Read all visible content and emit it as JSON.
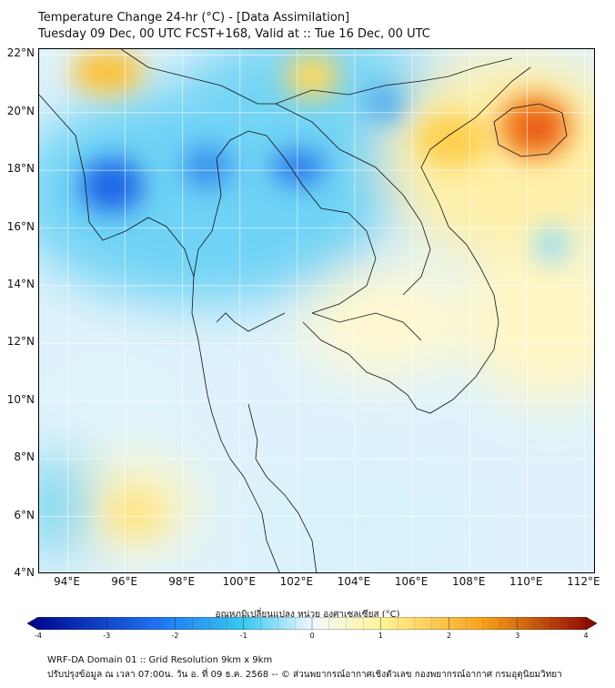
{
  "header": {
    "title_line1": "Temperature Change 24-hr (°C) - [Data Assimilation]",
    "title_line2": "Tuesday 09 Dec, 00 UTC FCST+168, Valid at :: Tue 16 Dec, 00 UTC"
  },
  "map": {
    "lat_labels": [
      "22°N",
      "20°N",
      "18°N",
      "16°N",
      "14°N",
      "12°N",
      "10°N",
      "8°N",
      "6°N",
      "4°N"
    ],
    "lon_labels": [
      "94°E",
      "96°E",
      "98°E",
      "100°E",
      "102°E",
      "104°E",
      "106°E",
      "108°E",
      "110°E",
      "112°E"
    ],
    "lat_range": [
      4,
      22.2
    ],
    "lon_range": [
      93,
      112.4
    ],
    "features": [
      {
        "name": "cold-spot-myanmar",
        "lon": 95.8,
        "lat": 17.6,
        "value": -2.6
      },
      {
        "name": "cold-spot-laos-west",
        "lon": 102.0,
        "lat": 18.2,
        "value": -2.4
      },
      {
        "name": "cold-spot-north-thailand",
        "lon": 98.8,
        "lat": 18.5,
        "value": -1.8
      },
      {
        "name": "warm-spot-hainan",
        "lon": 110.0,
        "lat": 19.4,
        "value": 3.0
      },
      {
        "name": "warm-area-vietnam-north",
        "lon": 107.0,
        "lat": 18.5,
        "value": 1.6
      },
      {
        "name": "warm-area-myanmar-north",
        "lon": 96.0,
        "lat": 21.3,
        "value": 1.5
      },
      {
        "name": "warm-area-south-seas",
        "lon": 96.6,
        "lat": 5.6,
        "value": 1.1
      }
    ]
  },
  "colorbar": {
    "label": "อุณหภูมิเปลี่ยนแปลง หน่วย องศาเซลเซียส (°C)",
    "min": -4,
    "max": 4,
    "ticks": [
      "-4",
      "-3",
      "-2",
      "-1",
      "0",
      "1",
      "2",
      "3",
      "4"
    ],
    "colors": {
      "cold_deep": "#00008b",
      "cold_mid": "#1e6ff0",
      "cold_light": "#38c8f0",
      "near_zero": "#f0f8ff",
      "warm_light": "#fff59a",
      "warm_mid": "#f7a21b",
      "warm_deep": "#8b0000"
    }
  },
  "footer": {
    "line1": "WRF-DA Domain 01 :: Grid Resolution 9km x 9km",
    "line2": "ปรับปรุงข้อมูล ณ เวลา 07:00น. วัน อ. ที่ 09 ธ.ค. 2568 -- © ส่วนพยากรณ์อากาศเชิงตัวเลข กองพยากรณ์อากาศ กรมอุตุนิยมวิทยา"
  }
}
